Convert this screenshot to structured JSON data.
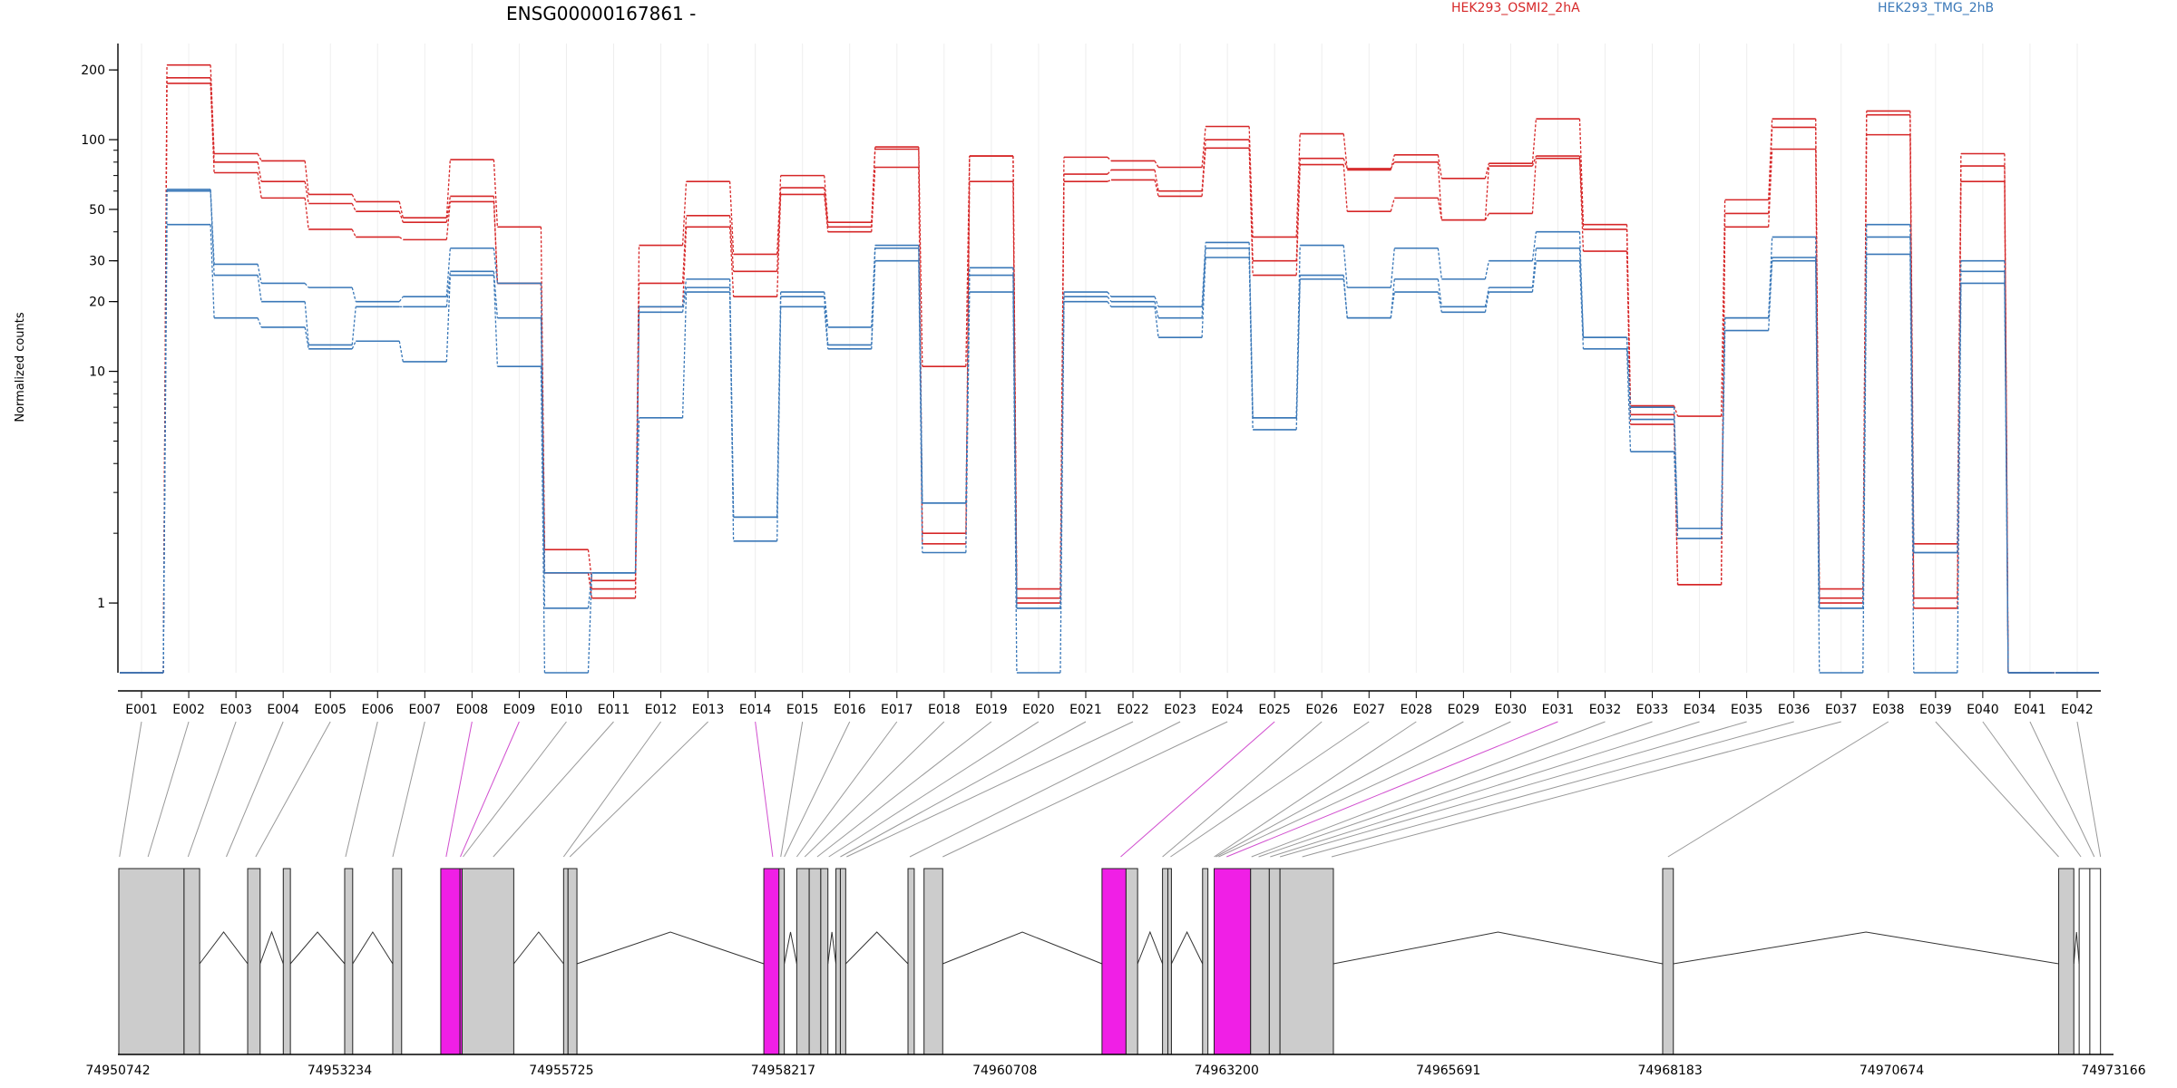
{
  "chart_data": {
    "type": "line",
    "title": "ENSG00000167861 -",
    "xlabel": "",
    "ylabel": "Normalized counts",
    "y_scale": "log",
    "ylim_display": [
      0.5,
      260
    ],
    "y_ticks": [
      {
        "label": "1",
        "value": 1
      },
      {
        "label": "10",
        "value": 10
      },
      {
        "label": "20",
        "value": 20
      },
      {
        "label": "30",
        "value": 30
      },
      {
        "label": "50",
        "value": 50
      },
      {
        "label": "100",
        "value": 100
      },
      {
        "label": "200",
        "value": 200
      }
    ],
    "legend_placement": "top-right",
    "categories": [
      "E001",
      "E002",
      "E003",
      "E004",
      "E005",
      "E006",
      "E007",
      "E008",
      "E009",
      "E010",
      "E011",
      "E012",
      "E013",
      "E014",
      "E015",
      "E016",
      "E017",
      "E018",
      "E019",
      "E020",
      "E021",
      "E022",
      "E023",
      "E024",
      "E025",
      "E026",
      "E027",
      "E028",
      "E029",
      "E030",
      "E031",
      "E032",
      "E033",
      "E034",
      "E035",
      "E036",
      "E037",
      "E038",
      "E039",
      "E040",
      "E041",
      "E042"
    ],
    "series": [
      {
        "name": "HEK293_OSMI2_2hA",
        "color": "#d62728",
        "replicates": [
          [
            0.5,
            210,
            87,
            81,
            58,
            54,
            46,
            82,
            42,
            1.7,
            1.25,
            35,
            66,
            32,
            70,
            44,
            93,
            10.5,
            85,
            1.15,
            84,
            81,
            76,
            114,
            38,
            106,
            74,
            86,
            68,
            79,
            123,
            43,
            7.1,
            6.4,
            55,
            123,
            1.15,
            133,
            1.8,
            87,
            0.5,
            0.5
          ],
          [
            0.5,
            185,
            80,
            66,
            53,
            49,
            44,
            57,
            24,
            1.35,
            1.15,
            24,
            47,
            27,
            62,
            42,
            91,
            2.0,
            85,
            1.05,
            71,
            74,
            60,
            100,
            30,
            83,
            75,
            80,
            45,
            77,
            85,
            41,
            6.5,
            1.2,
            48,
            113,
            1.05,
            128,
            1.05,
            77,
            0.5,
            0.5
          ],
          [
            0.5,
            175,
            72,
            56,
            41,
            38,
            37,
            54,
            24,
            1.35,
            1.05,
            19,
            42,
            21,
            58,
            40,
            76,
            1.8,
            66,
            1.0,
            66,
            67,
            57,
            92,
            26,
            78,
            49,
            56,
            45,
            48,
            83,
            33,
            5.9,
            1.2,
            42,
            91,
            1.0,
            105,
            0.95,
            66,
            0.5,
            0.5
          ]
        ]
      },
      {
        "name": "HEK293_TMG_2hB",
        "color": "#3a78b8",
        "replicates": [
          [
            0.5,
            61,
            29,
            24,
            23,
            20,
            21,
            34,
            24,
            1.35,
            1.35,
            19,
            25,
            2.35,
            22,
            15.5,
            35,
            2.7,
            28,
            0.95,
            22,
            21,
            19,
            36,
            6.3,
            35,
            23,
            34,
            25,
            30,
            40,
            14,
            7.0,
            2.1,
            17,
            38,
            0.95,
            43,
            1.65,
            30,
            0.5,
            0.5
          ],
          [
            0.5,
            60,
            26,
            20,
            13,
            19,
            19,
            27,
            17,
            0.95,
            1.35,
            18,
            23,
            2.35,
            21,
            13,
            34,
            2.7,
            26,
            0.95,
            21,
            20,
            17,
            34,
            6.3,
            26,
            17,
            25,
            19,
            23,
            34,
            14,
            6.2,
            2.1,
            17,
            31,
            0.95,
            38,
            1.65,
            27,
            0.5,
            0.5
          ],
          [
            0.5,
            43,
            17,
            15.5,
            12.5,
            13.5,
            11,
            26,
            10.5,
            0.5,
            1.35,
            6.3,
            22,
            1.85,
            19,
            12.5,
            30,
            1.65,
            22,
            0.5,
            20,
            19,
            14,
            31,
            5.6,
            25,
            17,
            22,
            18,
            22,
            30,
            12.5,
            4.5,
            1.9,
            15,
            30,
            0.5,
            32,
            0.5,
            24,
            0.5,
            0.5
          ]
        ]
      }
    ],
    "gene_model": {
      "coordinate_labels": [
        "74950742",
        "74953234",
        "74955725",
        "74958217",
        "74960708",
        "74963200",
        "74965691",
        "74968183",
        "74970674",
        "74973166"
      ],
      "coordinate_values": [
        74950742,
        74953234,
        74955725,
        74958217,
        74960708,
        74963200,
        74965691,
        74968183,
        74970674,
        74973166
      ],
      "range": [
        74950742,
        74973166
      ],
      "exon_color": "#cccccc",
      "highlight_color": "#f01fe6",
      "exons": [
        {
          "start": 74950752,
          "end": 74951485
        },
        {
          "start": 74951485,
          "end": 74951660
        },
        {
          "start": 74952200,
          "end": 74952340
        },
        {
          "start": 74952600,
          "end": 74952680
        },
        {
          "start": 74953290,
          "end": 74953380
        },
        {
          "start": 74953830,
          "end": 74953930
        },
        {
          "start": 74954370,
          "end": 74954586,
          "highlight": true
        },
        {
          "start": 74954586,
          "end": 74954610,
          "highlight": true
        },
        {
          "start": 74954610,
          "end": 74955190
        },
        {
          "start": 74955750,
          "end": 74955800
        },
        {
          "start": 74955800,
          "end": 74955900
        },
        {
          "start": 74958000,
          "end": 74958170,
          "highlight": true
        },
        {
          "start": 74958170,
          "end": 74958230
        },
        {
          "start": 74958370,
          "end": 74958510
        },
        {
          "start": 74958510,
          "end": 74958640
        },
        {
          "start": 74958640,
          "end": 74958720
        },
        {
          "start": 74958810,
          "end": 74958860
        },
        {
          "start": 74958860,
          "end": 74958920
        },
        {
          "start": 74959620,
          "end": 74959690
        },
        {
          "start": 74959800,
          "end": 74960010
        },
        {
          "start": 74961800,
          "end": 74962070,
          "highlight": true
        },
        {
          "start": 74962070,
          "end": 74962200
        },
        {
          "start": 74962480,
          "end": 74962540
        },
        {
          "start": 74962540,
          "end": 74962580
        },
        {
          "start": 74962930,
          "end": 74962990
        },
        {
          "start": 74963060,
          "end": 74963470,
          "highlight": true
        },
        {
          "start": 74963470,
          "end": 74963680
        },
        {
          "start": 74963680,
          "end": 74963800
        },
        {
          "start": 74963800,
          "end": 74964400
        },
        {
          "start": 74968100,
          "end": 74968220
        },
        {
          "start": 74972550,
          "end": 74972720
        },
        {
          "start": 74972780,
          "end": 74972900,
          "open": true
        },
        {
          "start": 74972900,
          "end": 74973020,
          "open": true
        }
      ],
      "introns": [
        [
          74951660,
          74952200
        ],
        [
          74952340,
          74952600
        ],
        [
          74952680,
          74953290
        ],
        [
          74953380,
          74953830
        ],
        [
          74955190,
          74955750
        ],
        [
          74955900,
          74958000
        ],
        [
          74958230,
          74958370
        ],
        [
          74958720,
          74958810
        ],
        [
          74958920,
          74959620
        ],
        [
          74960010,
          74961800
        ],
        [
          74962200,
          74962480
        ],
        [
          74962580,
          74962930
        ],
        [
          74964400,
          74968100
        ],
        [
          74968220,
          74972550
        ],
        [
          74972720,
          74972780
        ]
      ],
      "connectors": [
        {
          "exon": "E001",
          "pos": 74950760
        },
        {
          "exon": "E002",
          "pos": 74951080
        },
        {
          "exon": "E003",
          "pos": 74951530
        },
        {
          "exon": "E004",
          "pos": 74951960
        },
        {
          "exon": "E005",
          "pos": 74952290
        },
        {
          "exon": "E006",
          "pos": 74953300
        },
        {
          "exon": "E007",
          "pos": 74953830
        },
        {
          "exon": "E008",
          "pos": 74954430,
          "highlight": true
        },
        {
          "exon": "E009",
          "pos": 74954590,
          "highlight": true
        },
        {
          "exon": "E010",
          "pos": 74954620
        },
        {
          "exon": "E011",
          "pos": 74954960
        },
        {
          "exon": "E012",
          "pos": 74955750
        },
        {
          "exon": "E013",
          "pos": 74955820
        },
        {
          "exon": "E014",
          "pos": 74958100,
          "highlight": true
        },
        {
          "exon": "E015",
          "pos": 74958190
        },
        {
          "exon": "E016",
          "pos": 74958230
        },
        {
          "exon": "E017",
          "pos": 74958370
        },
        {
          "exon": "E018",
          "pos": 74958460
        },
        {
          "exon": "E019",
          "pos": 74958600
        },
        {
          "exon": "E020",
          "pos": 74958730
        },
        {
          "exon": "E021",
          "pos": 74958860
        },
        {
          "exon": "E022",
          "pos": 74958930
        },
        {
          "exon": "E023",
          "pos": 74959640
        },
        {
          "exon": "E024",
          "pos": 74960010
        },
        {
          "exon": "E025",
          "pos": 74962010,
          "highlight": true
        },
        {
          "exon": "E026",
          "pos": 74962480
        },
        {
          "exon": "E027",
          "pos": 74962570
        },
        {
          "exon": "E028",
          "pos": 74963060
        },
        {
          "exon": "E029",
          "pos": 74963080
        },
        {
          "exon": "E030",
          "pos": 74963110
        },
        {
          "exon": "E031",
          "pos": 74963200,
          "highlight": true
        },
        {
          "exon": "E032",
          "pos": 74963480
        },
        {
          "exon": "E033",
          "pos": 74963560
        },
        {
          "exon": "E034",
          "pos": 74963690
        },
        {
          "exon": "E035",
          "pos": 74963800
        },
        {
          "exon": "E036",
          "pos": 74964050
        },
        {
          "exon": "E037",
          "pos": 74964380
        },
        {
          "exon": "E038",
          "pos": 74968160
        },
        {
          "exon": "E039",
          "pos": 74972550
        },
        {
          "exon": "E040",
          "pos": 74972800
        },
        {
          "exon": "E041",
          "pos": 74972950
        },
        {
          "exon": "E042",
          "pos": 74973020
        }
      ]
    }
  }
}
